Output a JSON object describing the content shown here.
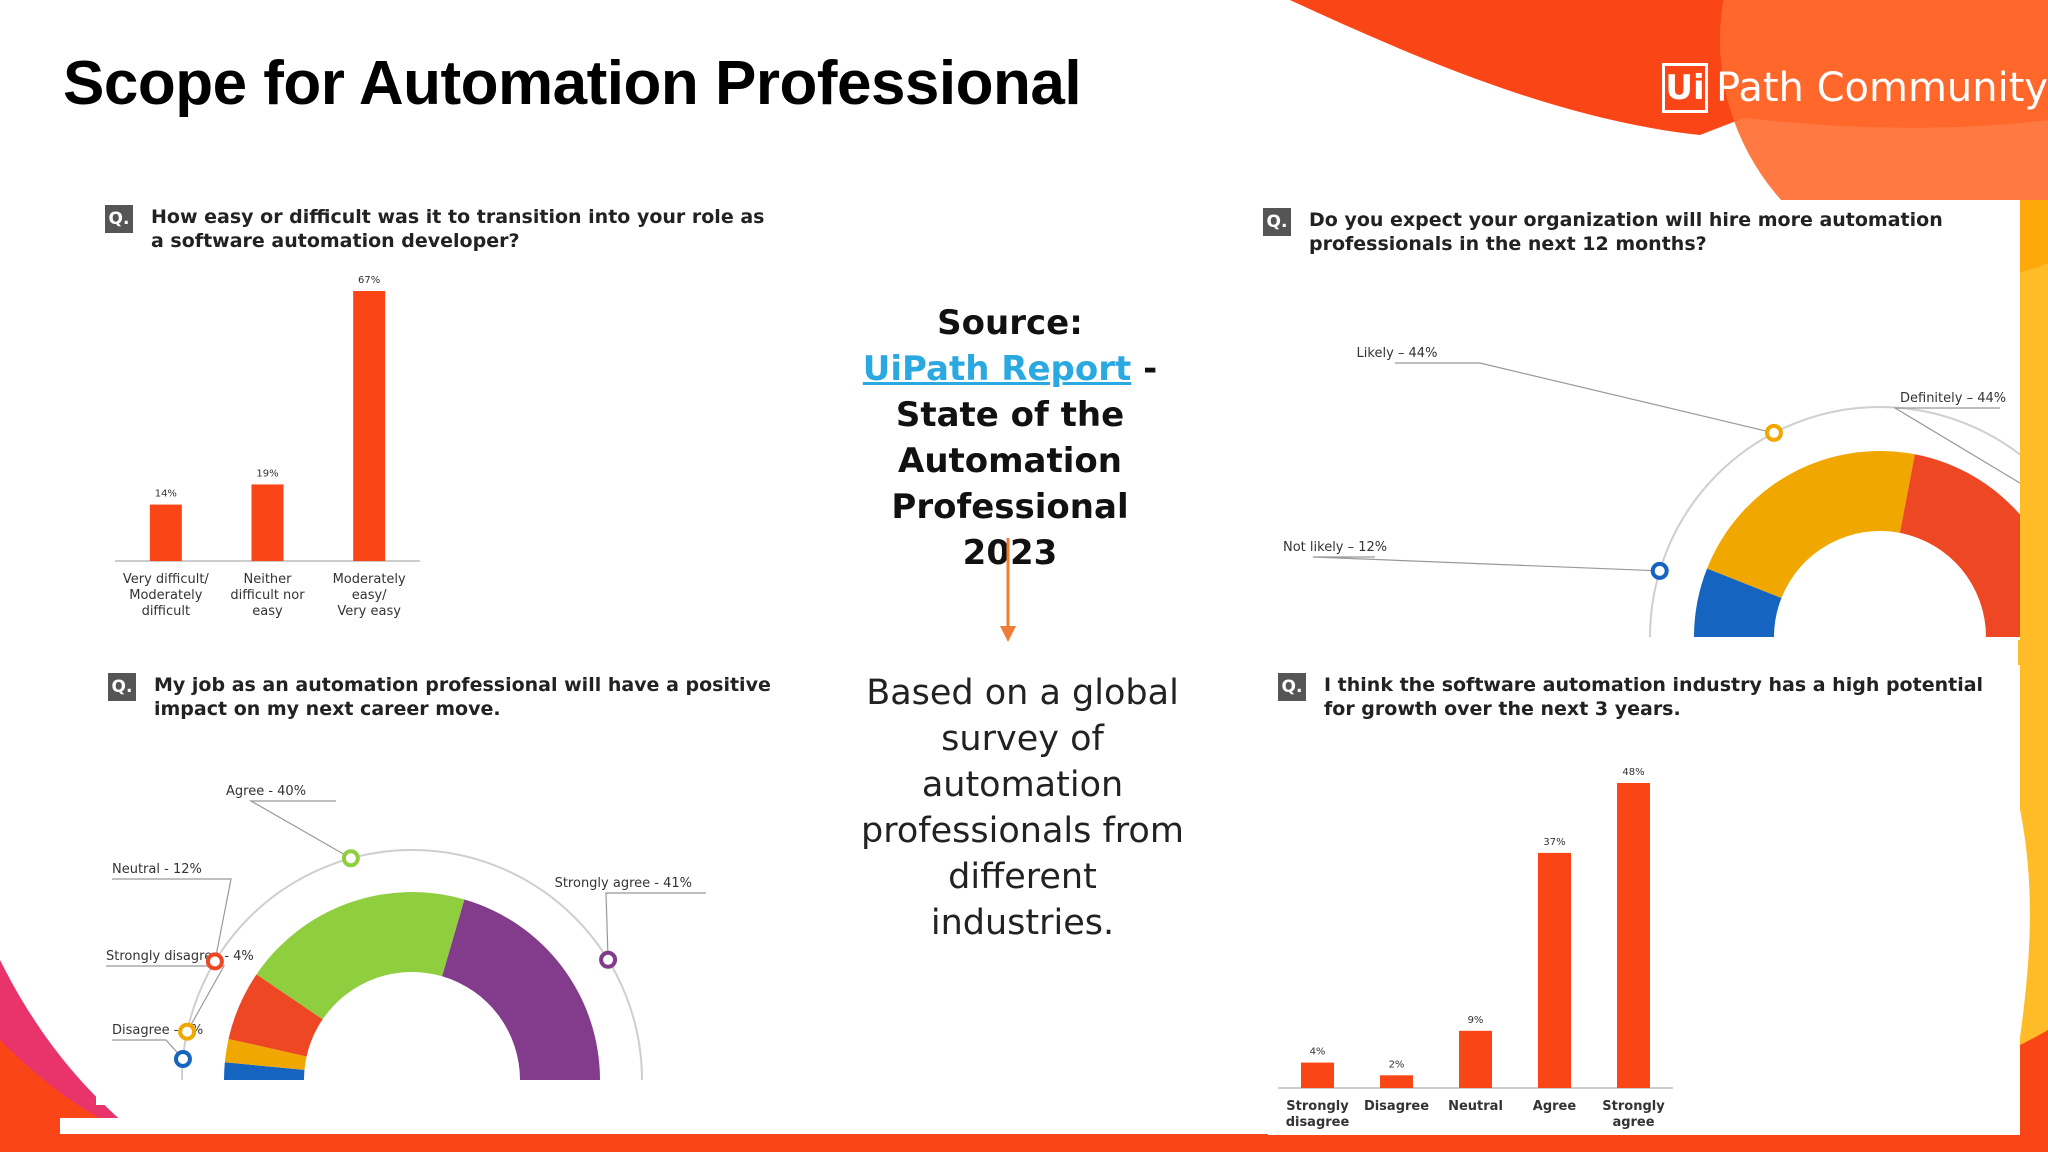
{
  "page": {
    "title": "Scope for Automation Professional",
    "logo": {
      "box": "Ui",
      "text": "Path Community"
    },
    "colors": {
      "brand_orange": "#fa4616",
      "accent_blue": "#2aa8e0"
    }
  },
  "source": {
    "label": "Source:",
    "link_text": "UiPath Report",
    "dash": "-",
    "line1": "State of the",
    "line2": "Automation",
    "line3": "Professional 2023"
  },
  "description": "Based on a global survey of automation professionals from different industries.",
  "q_badge": "Q.",
  "chart_data": [
    {
      "type": "bar",
      "question": "How easy or difficult was it to transition into your role as a software automation developer?",
      "categories": [
        [
          "Very difficult/",
          "Moderately",
          "difficult"
        ],
        [
          "Neither",
          "difficult nor",
          "easy"
        ],
        [
          "Moderately",
          "easy/",
          "Very easy"
        ]
      ],
      "values": [
        14,
        19,
        67
      ],
      "value_labels": [
        "14%",
        "19%",
        "67%"
      ],
      "ylim": [
        0,
        67
      ],
      "color": "#fa4616"
    },
    {
      "type": "pie",
      "style": "semi-donut",
      "question": "Do you expect your organization will hire more automation professionals in the next 12 months?",
      "slices": [
        {
          "label": "Not likely – 12%",
          "value": 12,
          "color": "#1565c0"
        },
        {
          "label": "Likely – 44%",
          "value": 44,
          "color": "#f0a800"
        },
        {
          "label": "Definitely – 44%",
          "value": 44,
          "color": "#ee4723"
        }
      ]
    },
    {
      "type": "pie",
      "style": "semi-donut",
      "question": "My job as an automation professional will have a positive impact on my next career move.",
      "slices": [
        {
          "label": "Disagree - 3%",
          "value": 3,
          "color": "#1565c0"
        },
        {
          "label": "Strongly disagree - 4%",
          "value": 4,
          "color": "#f0a800"
        },
        {
          "label": "Neutral - 12%",
          "value": 12,
          "color": "#ee4723"
        },
        {
          "label": "Agree - 40%",
          "value": 40,
          "color": "#8fce3f"
        },
        {
          "label": "Strongly agree - 41%",
          "value": 41,
          "color": "#833b8b"
        }
      ]
    },
    {
      "type": "bar",
      "question": "I think the software automation industry has a high potential for growth over the next 3 years.",
      "categories": [
        [
          "Strongly",
          "disagree"
        ],
        [
          "Disagree"
        ],
        [
          "Neutral"
        ],
        [
          "Agree"
        ],
        [
          "Strongly",
          "agree"
        ]
      ],
      "values": [
        4,
        2,
        9,
        37,
        48
      ],
      "value_labels": [
        "4%",
        "2%",
        "9%",
        "37%",
        "48%"
      ],
      "ylim": [
        0,
        48
      ],
      "color": "#fa4616"
    }
  ]
}
